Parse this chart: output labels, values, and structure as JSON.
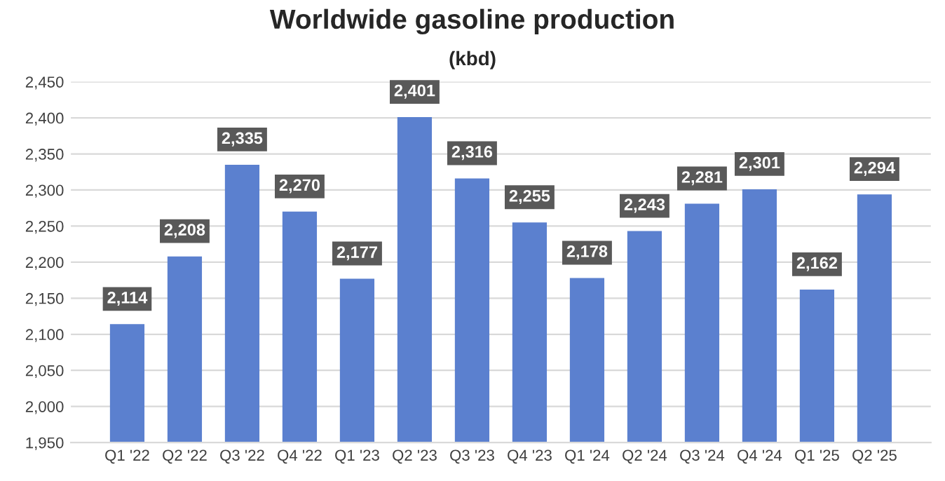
{
  "chart_data": {
    "type": "bar",
    "title": "Worldwide gasoline production",
    "subtitle": "(kbd)",
    "categories": [
      "Q1 '22",
      "Q2 '22",
      "Q3 '22",
      "Q4 '22",
      "Q1 '23",
      "Q2 '23",
      "Q3 '23",
      "Q4 '23",
      "Q1 '24",
      "Q2 '24",
      "Q3 '24",
      "Q4 '24",
      "Q1 '25",
      "Q2 '25"
    ],
    "values": [
      2114,
      2208,
      2335,
      2270,
      2177,
      2401,
      2316,
      2255,
      2178,
      2243,
      2281,
      2301,
      2162,
      2294
    ],
    "value_labels": [
      "2,114",
      "2,208",
      "2,335",
      "2,270",
      "2,177",
      "2,401",
      "2,316",
      "2,255",
      "2,178",
      "2,243",
      "2,281",
      "2,301",
      "2,162",
      "2,294"
    ],
    "color": "#5b80cf",
    "ylim": [
      1950,
      2450
    ],
    "yticks": [
      {
        "value": 1950,
        "label": "1,950"
      },
      {
        "value": 2000,
        "label": "2,000"
      },
      {
        "value": 2050,
        "label": "2,050"
      },
      {
        "value": 2100,
        "label": "2,100"
      },
      {
        "value": 2150,
        "label": "2,150"
      },
      {
        "value": 2200,
        "label": "2,200"
      },
      {
        "value": 2250,
        "label": "2,250"
      },
      {
        "value": 2300,
        "label": "2,300"
      },
      {
        "value": 2350,
        "label": "2,350"
      },
      {
        "value": 2400,
        "label": "2,400"
      },
      {
        "value": 2450,
        "label": "2,450"
      }
    ],
    "grid": "y",
    "legend": false
  }
}
